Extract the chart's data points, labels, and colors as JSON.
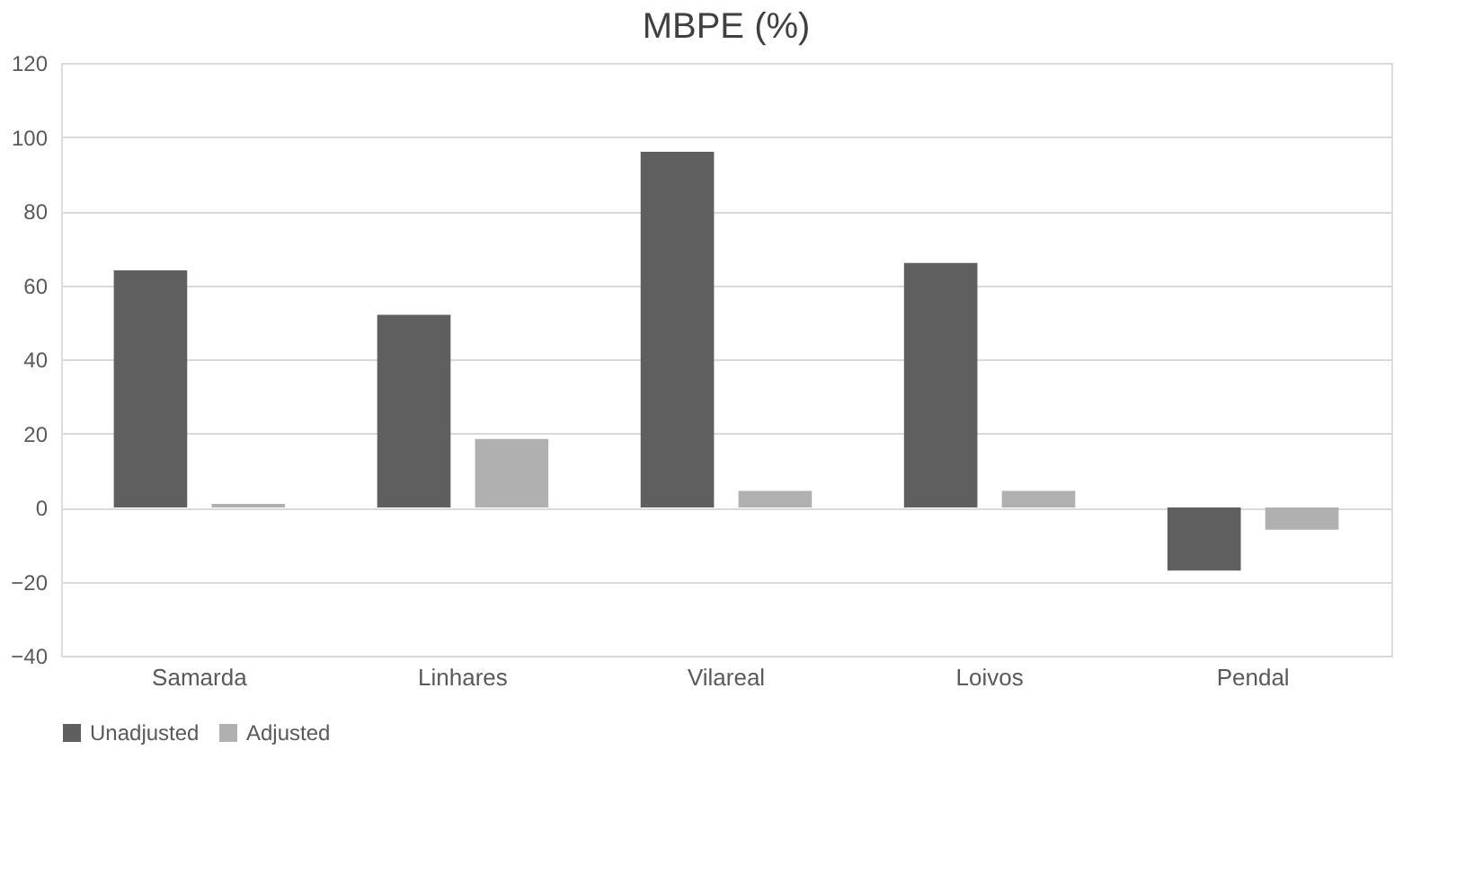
{
  "chart_data": {
    "type": "bar",
    "title": "MBPE (%)",
    "categories": [
      "Samarda",
      "Linhares",
      "Vilareal",
      "Loivos",
      "Pendal"
    ],
    "series": [
      {
        "name": "Unadjusted",
        "color": "#5f5f5f",
        "values": [
          64,
          52,
          96,
          66,
          -17
        ]
      },
      {
        "name": "Adjusted",
        "color": "#b0b0b0",
        "values": [
          1,
          18.5,
          4.5,
          4.5,
          -6
        ]
      }
    ],
    "ylim": [
      -40,
      120
    ],
    "yticks": [
      -40,
      -20,
      0,
      20,
      40,
      60,
      80,
      100,
      120
    ],
    "grid": "y",
    "legend": "bottom"
  }
}
